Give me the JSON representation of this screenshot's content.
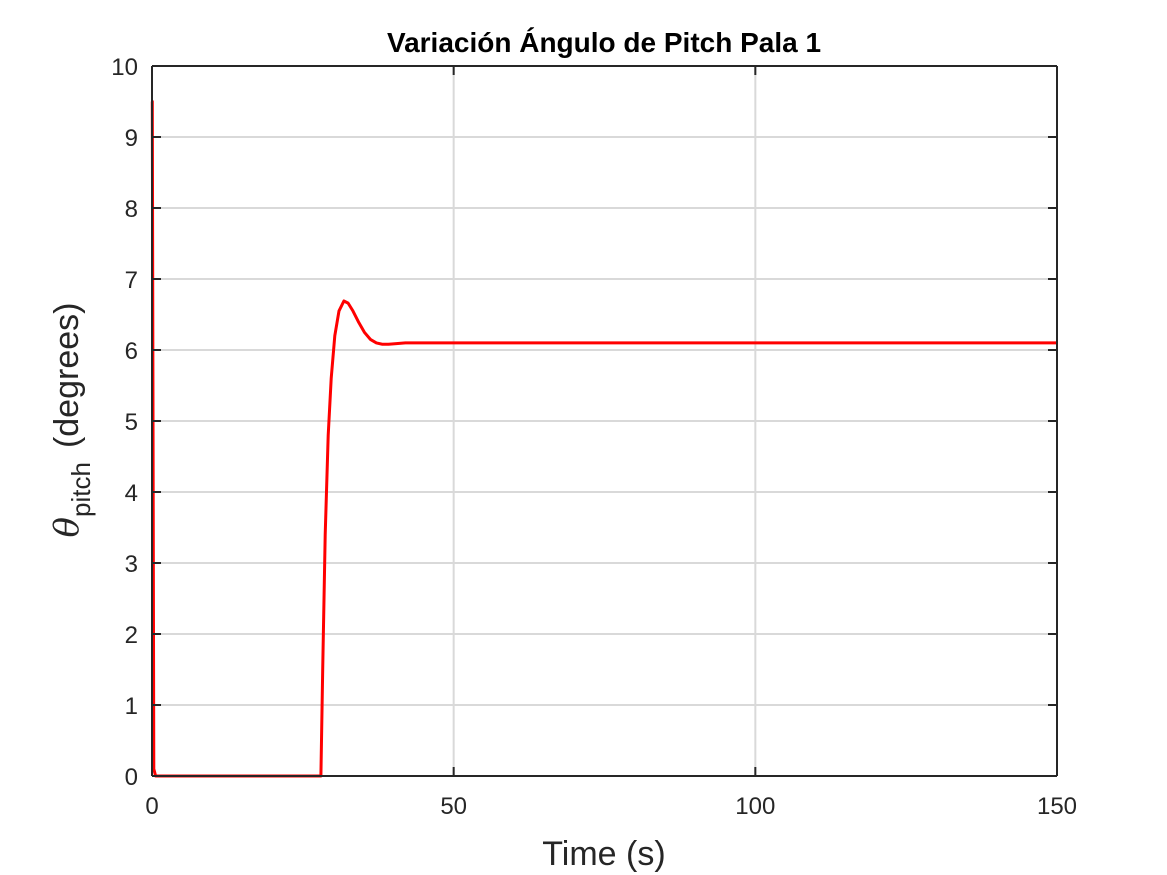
{
  "chart_data": {
    "type": "line",
    "title": "Variación Ángulo de Pitch Pala 1",
    "xlabel": "Time (s)",
    "ylabel": {
      "symbol": "θ",
      "subscript": "pitch",
      "unit": "(degrees)"
    },
    "xlim": [
      0,
      150
    ],
    "ylim": [
      0,
      10
    ],
    "xticks": [
      0,
      50,
      100,
      150
    ],
    "yticks": [
      0,
      1,
      2,
      3,
      4,
      5,
      6,
      7,
      8,
      9,
      10
    ],
    "grid": true,
    "series": [
      {
        "color": "#ff0000",
        "x": [
          0,
          0.05,
          0.3,
          0.6,
          28.0,
          28.3,
          28.7,
          29.2,
          29.7,
          30.3,
          31.0,
          31.8,
          32.5,
          33.3,
          34.2,
          35.2,
          36.2,
          37.2,
          38.2,
          39.2,
          40.5,
          42,
          45,
          50,
          60,
          80,
          100,
          120,
          150
        ],
        "y": [
          9.5,
          9.5,
          0.1,
          0.0,
          0.0,
          1.5,
          3.4,
          4.8,
          5.6,
          6.2,
          6.55,
          6.69,
          6.66,
          6.55,
          6.4,
          6.25,
          6.15,
          6.1,
          6.08,
          6.08,
          6.09,
          6.1,
          6.1,
          6.1,
          6.1,
          6.1,
          6.1,
          6.1,
          6.1
        ]
      }
    ]
  }
}
